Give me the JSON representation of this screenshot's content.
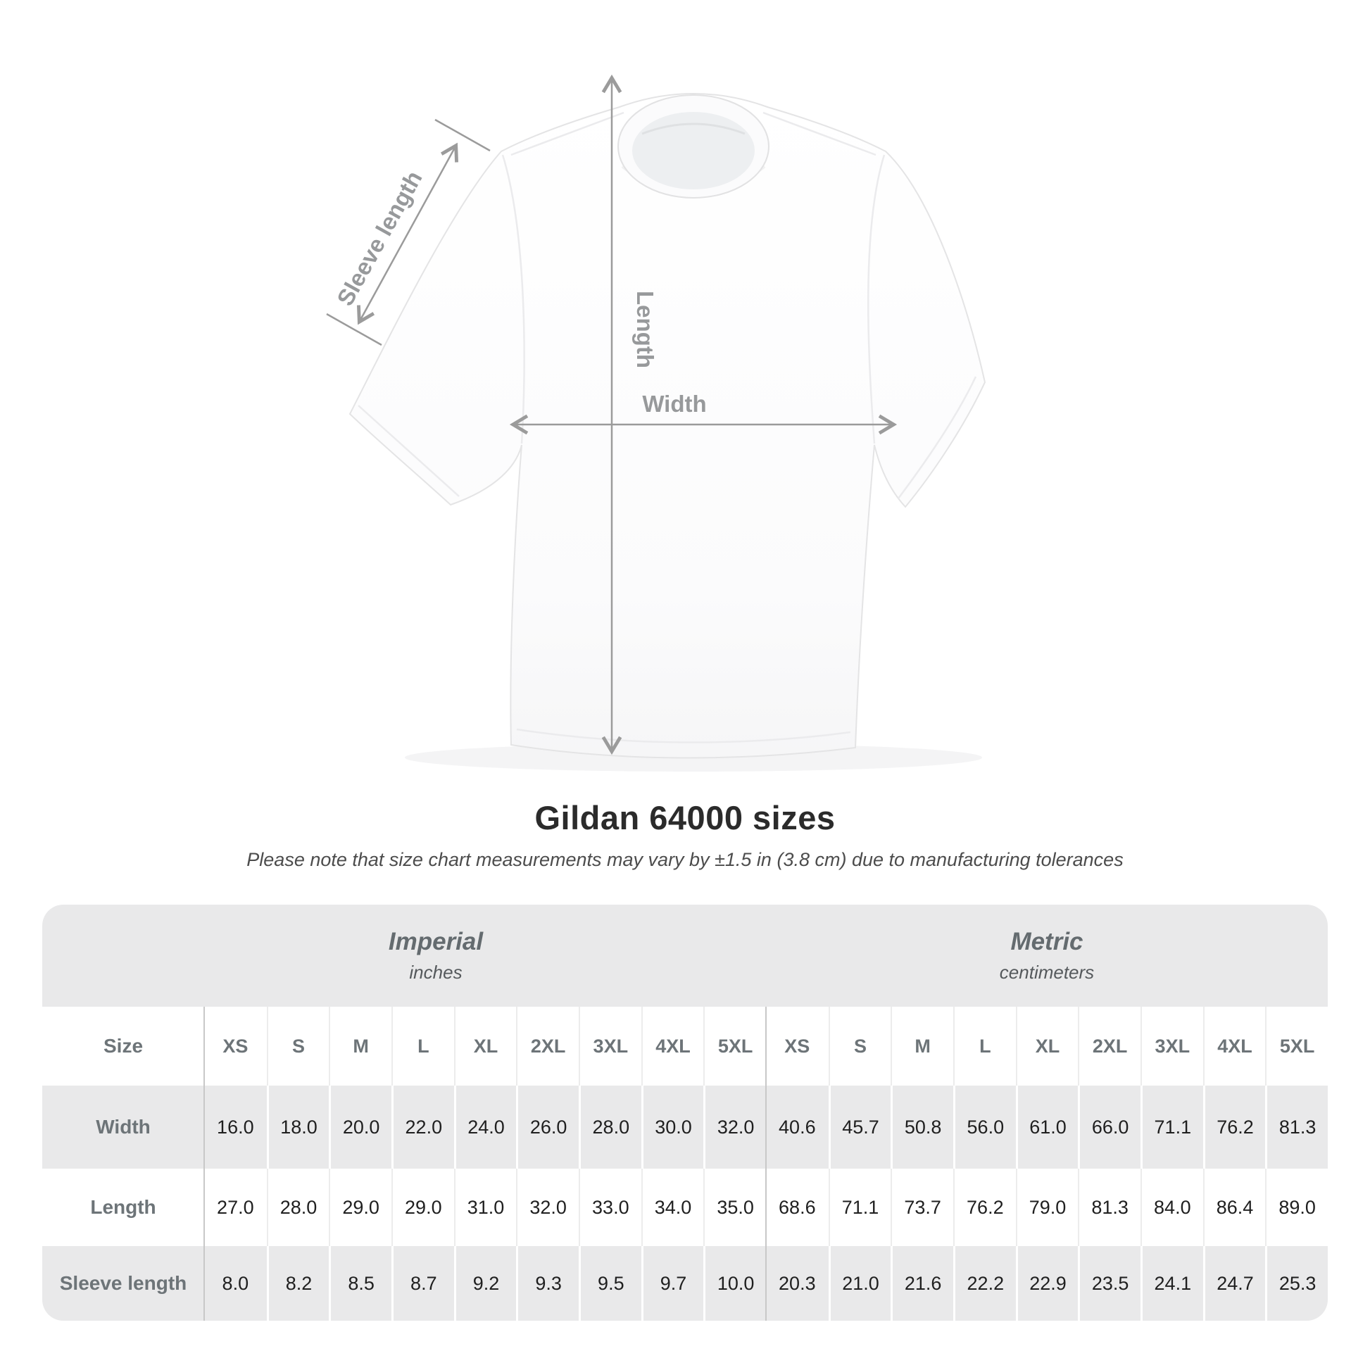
{
  "diagram": {
    "sleeve_label": "Sleeve length",
    "length_label": "Length",
    "width_label": "Width",
    "arrow_color": "#9b9b9b",
    "label_color": "#97999b"
  },
  "title": "Gildan 64000 sizes",
  "subtitle": "Please note that size chart measurements may vary by ±1.5 in (3.8 cm) due to manufacturing tolerances",
  "table": {
    "unit_groups": [
      {
        "label": "Imperial",
        "sublabel": "inches"
      },
      {
        "label": "Metric",
        "sublabel": "centimeters"
      }
    ],
    "size_header": "Size",
    "sizes": [
      "XS",
      "S",
      "M",
      "L",
      "XL",
      "2XL",
      "3XL",
      "4XL",
      "5XL"
    ],
    "rows": [
      {
        "label": "Width",
        "imperial": [
          "16.0",
          "18.0",
          "20.0",
          "22.0",
          "24.0",
          "26.0",
          "28.0",
          "30.0",
          "32.0"
        ],
        "metric": [
          "40.6",
          "45.7",
          "50.8",
          "56.0",
          "61.0",
          "66.0",
          "71.1",
          "76.2",
          "81.3"
        ]
      },
      {
        "label": "Length",
        "imperial": [
          "27.0",
          "28.0",
          "29.0",
          "29.0",
          "31.0",
          "32.0",
          "33.0",
          "34.0",
          "35.0"
        ],
        "metric": [
          "68.6",
          "71.1",
          "73.7",
          "76.2",
          "79.0",
          "81.3",
          "84.0",
          "86.4",
          "89.0"
        ]
      },
      {
        "label": "Sleeve length",
        "imperial": [
          "8.0",
          "8.2",
          "8.5",
          "8.7",
          "9.2",
          "9.3",
          "9.5",
          "9.7",
          "10.0"
        ],
        "metric": [
          "20.3",
          "21.0",
          "21.6",
          "22.2",
          "22.9",
          "23.5",
          "24.1",
          "24.7",
          "25.3"
        ]
      }
    ]
  },
  "chart_data": {
    "type": "table",
    "title": "Gildan 64000 sizes",
    "subtitle": "Please note that size chart measurements may vary by ±1.5 in (3.8 cm) due to manufacturing tolerances",
    "column_groups": [
      "Imperial (inches)",
      "Metric (centimeters)"
    ],
    "sizes": [
      "XS",
      "S",
      "M",
      "L",
      "XL",
      "2XL",
      "3XL",
      "4XL",
      "5XL"
    ],
    "rows": [
      {
        "label": "Width",
        "imperial": [
          16.0,
          18.0,
          20.0,
          22.0,
          24.0,
          26.0,
          28.0,
          30.0,
          32.0
        ],
        "metric": [
          40.6,
          45.7,
          50.8,
          56.0,
          61.0,
          66.0,
          71.1,
          76.2,
          81.3
        ]
      },
      {
        "label": "Length",
        "imperial": [
          27.0,
          28.0,
          29.0,
          29.0,
          31.0,
          32.0,
          33.0,
          34.0,
          35.0
        ],
        "metric": [
          68.6,
          71.1,
          73.7,
          76.2,
          79.0,
          81.3,
          84.0,
          86.4,
          89.0
        ]
      },
      {
        "label": "Sleeve length",
        "imperial": [
          8.0,
          8.2,
          8.5,
          8.7,
          9.2,
          9.3,
          9.5,
          9.7,
          10.0
        ],
        "metric": [
          20.3,
          21.0,
          21.6,
          22.2,
          22.9,
          23.5,
          24.1,
          24.7,
          25.3
        ]
      }
    ]
  }
}
